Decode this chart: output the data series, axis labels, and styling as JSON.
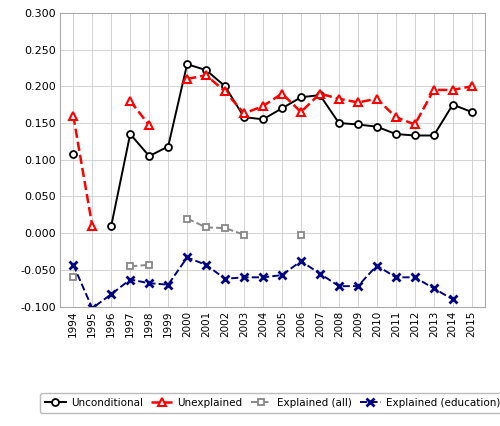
{
  "years": [
    1994,
    1995,
    1996,
    1997,
    1998,
    1999,
    2000,
    2001,
    2002,
    2003,
    2004,
    2005,
    2006,
    2007,
    2008,
    2009,
    2010,
    2011,
    2012,
    2013,
    2014,
    2015
  ],
  "unconditional": [
    0.108,
    null,
    0.01,
    0.135,
    0.105,
    0.118,
    0.23,
    0.222,
    0.2,
    0.158,
    0.155,
    0.17,
    0.185,
    0.188,
    0.15,
    0.148,
    0.145,
    0.135,
    0.133,
    0.133,
    0.175,
    0.165
  ],
  "unexplained": [
    0.16,
    0.01,
    null,
    0.18,
    0.147,
    null,
    0.21,
    0.215,
    0.193,
    0.163,
    0.173,
    0.19,
    0.165,
    0.19,
    0.183,
    0.178,
    0.183,
    0.158,
    0.148,
    0.195,
    0.195,
    0.2
  ],
  "explained_all": [
    -0.06,
    null,
    null,
    -0.045,
    -0.043,
    null,
    0.02,
    0.008,
    0.007,
    -0.002,
    null,
    null,
    -0.003,
    null,
    null,
    null,
    null,
    null,
    null,
    null,
    null,
    null
  ],
  "explained_edu": [
    -0.043,
    -0.102,
    -0.083,
    -0.063,
    -0.068,
    -0.07,
    -0.033,
    -0.043,
    -0.062,
    -0.06,
    -0.06,
    -0.057,
    -0.038,
    -0.055,
    -0.072,
    -0.072,
    -0.044,
    -0.06,
    -0.06,
    -0.075,
    -0.09,
    null
  ],
  "ylim": [
    -0.1,
    0.3
  ],
  "ytick_values": [
    -0.1,
    -0.05,
    0.0,
    0.05,
    0.1,
    0.15,
    0.2,
    0.25,
    0.3
  ],
  "ytick_labels": [
    "-0.100",
    "-0.050",
    "0.000",
    "0.050",
    "0.100",
    "0.150",
    "0.200",
    "0.250",
    "0.300"
  ],
  "legend_order": [
    "Unconditional",
    "Unexplained",
    "Explained (all)",
    "Explained (education)"
  ]
}
